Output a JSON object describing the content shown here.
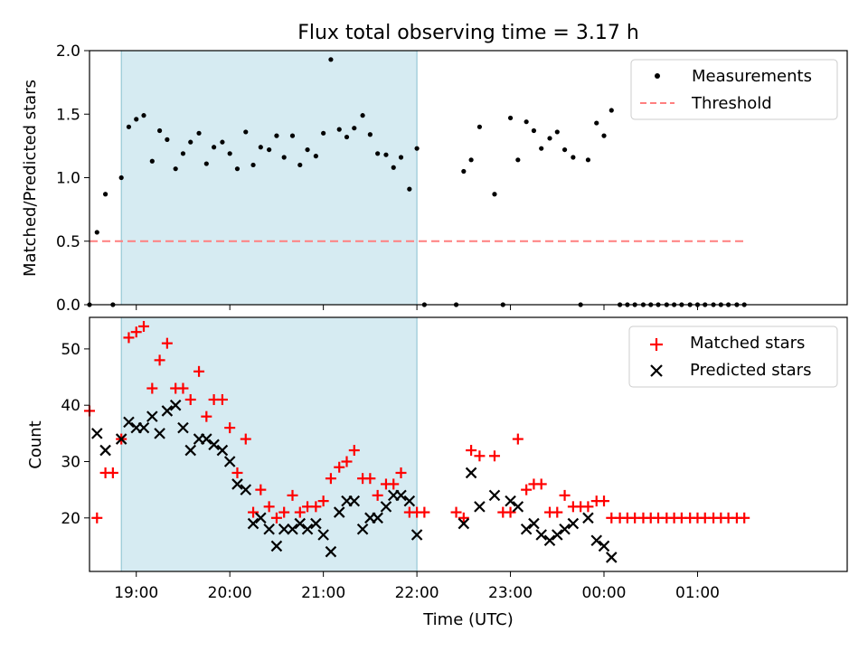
{
  "chart_data": [
    {
      "type": "scatter",
      "title": "Flux total observing time = 3.17 h",
      "xlabel": "",
      "ylabel": "Matched/Predicted stars",
      "xlim": [
        -0.5,
        7.6
      ],
      "ylim": [
        0,
        2.0
      ],
      "yticks": [
        0.0,
        0.5,
        1.0,
        1.5,
        2.0
      ],
      "ytick_labels": [
        "0.0",
        "0.5",
        "1.0",
        "1.5",
        "2.0"
      ],
      "xticks": [
        0.0,
        1.0,
        2.0,
        3.0,
        4.0,
        5.0,
        6.0
      ],
      "shaded_span": [
        -0.16,
        3.0
      ],
      "legend": {
        "placement": "top-right",
        "entries": [
          "Measurements",
          "Threshold"
        ]
      },
      "series": [
        {
          "name": "Measurements",
          "marker": "dot",
          "color": "#000000",
          "x": [
            -0.5,
            -0.42,
            -0.33,
            -0.25,
            -0.16,
            -0.08,
            0.0,
            0.08,
            0.17,
            0.25,
            0.33,
            0.42,
            0.5,
            0.58,
            0.67,
            0.75,
            0.83,
            0.92,
            1.0,
            1.08,
            1.17,
            1.25,
            1.33,
            1.42,
            1.5,
            1.58,
            1.67,
            1.75,
            1.83,
            1.92,
            2.0,
            2.08,
            2.17,
            2.25,
            2.33,
            2.42,
            2.5,
            2.58,
            2.67,
            2.75,
            2.83,
            2.92,
            3.0,
            3.08,
            3.42,
            3.5,
            3.58,
            3.67,
            3.83,
            3.92,
            4.0,
            4.08,
            4.17,
            4.25,
            4.33,
            4.42,
            4.5,
            4.58,
            4.67,
            4.75,
            4.83,
            4.92,
            5.0,
            5.08,
            5.17,
            5.25,
            5.33,
            5.42,
            5.5,
            5.58,
            5.67,
            5.75,
            5.83,
            5.92,
            6.0,
            6.08,
            6.17,
            6.25,
            6.33,
            6.42,
            6.5
          ],
          "values": [
            0.0,
            0.57,
            0.87,
            0.0,
            1.0,
            1.4,
            1.46,
            1.49,
            1.13,
            1.37,
            1.3,
            1.07,
            1.19,
            1.28,
            1.35,
            1.11,
            1.24,
            1.28,
            1.19,
            1.07,
            1.36,
            1.1,
            1.24,
            1.22,
            1.33,
            1.16,
            1.33,
            1.1,
            1.22,
            1.17,
            1.35,
            1.93,
            1.38,
            1.32,
            1.39,
            1.49,
            1.34,
            1.19,
            1.18,
            1.08,
            1.16,
            0.91,
            1.23,
            0.0,
            0.0,
            1.05,
            1.14,
            1.4,
            0.87,
            0.0,
            1.47,
            1.14,
            1.44,
            1.37,
            1.23,
            1.31,
            1.36,
            1.22,
            1.16,
            0.0,
            1.14,
            1.43,
            1.33,
            1.53,
            0.0,
            0.0,
            0.0,
            0.0,
            0.0,
            0.0,
            0.0,
            0.0,
            0.0,
            0.0,
            0.0,
            0.0,
            0.0,
            0.0,
            0.0,
            0.0,
            0.0
          ]
        },
        {
          "name": "Threshold",
          "style": "dashed",
          "color": "#ff7f7f",
          "x": [
            -0.5,
            6.5
          ],
          "values": [
            0.5,
            0.5
          ]
        }
      ]
    },
    {
      "type": "scatter",
      "title": "",
      "xlabel": "Time (UTC)",
      "ylabel": "Count",
      "xlim": [
        -0.5,
        7.6
      ],
      "ylim": [
        10.5,
        55.6
      ],
      "yticks": [
        20,
        30,
        40,
        50
      ],
      "ytick_labels": [
        "20",
        "30",
        "40",
        "50"
      ],
      "xticks": [
        0.0,
        1.0,
        2.0,
        3.0,
        4.0,
        5.0,
        6.0
      ],
      "xtick_labels": [
        "19:00",
        "20:00",
        "21:00",
        "22:00",
        "23:00",
        "00:00",
        "01:00"
      ],
      "shaded_span": [
        -0.16,
        3.0
      ],
      "legend": {
        "placement": "top-right",
        "entries": [
          "Matched stars",
          "Predicted stars"
        ]
      },
      "series": [
        {
          "name": "Matched stars",
          "marker": "plus",
          "color": "#ff0000",
          "x": [
            -0.5,
            -0.42,
            -0.33,
            -0.25,
            -0.16,
            -0.08,
            0.0,
            0.08,
            0.17,
            0.25,
            0.33,
            0.42,
            0.5,
            0.58,
            0.67,
            0.75,
            0.83,
            0.92,
            1.0,
            1.08,
            1.17,
            1.25,
            1.33,
            1.42,
            1.5,
            1.58,
            1.67,
            1.75,
            1.83,
            1.92,
            2.0,
            2.08,
            2.17,
            2.25,
            2.33,
            2.42,
            2.5,
            2.58,
            2.67,
            2.75,
            2.83,
            2.92,
            3.0,
            3.08,
            3.42,
            3.5,
            3.58,
            3.67,
            3.83,
            3.92,
            4.0,
            4.08,
            4.17,
            4.25,
            4.33,
            4.42,
            4.5,
            4.58,
            4.67,
            4.75,
            4.83,
            4.92,
            5.0,
            5.08,
            5.17,
            5.25,
            5.33,
            5.42,
            5.5,
            5.58,
            5.67,
            5.75,
            5.83,
            5.92,
            6.0,
            6.08,
            6.17,
            6.25,
            6.33,
            6.42,
            6.5
          ],
          "values": [
            39,
            20,
            28,
            28,
            34,
            52,
            53,
            54,
            43,
            48,
            51,
            43,
            43,
            41,
            46,
            38,
            41,
            41,
            36,
            28,
            34,
            21,
            25,
            22,
            20,
            21,
            24,
            21,
            22,
            22,
            23,
            27,
            29,
            30,
            32,
            27,
            27,
            24,
            26,
            26,
            28,
            21,
            21,
            21,
            21,
            20,
            32,
            31,
            31,
            21,
            21,
            34,
            25,
            26,
            26,
            21,
            21,
            24,
            22,
            22,
            22,
            23,
            23,
            20,
            20,
            20,
            20,
            20,
            20,
            20,
            20,
            20,
            20,
            20,
            20,
            20,
            20,
            20,
            20,
            20,
            20
          ]
        },
        {
          "name": "Predicted stars",
          "marker": "x",
          "color": "#000000",
          "x": [
            -0.42,
            -0.33,
            -0.16,
            -0.08,
            0.0,
            0.08,
            0.17,
            0.25,
            0.33,
            0.42,
            0.5,
            0.58,
            0.67,
            0.75,
            0.83,
            0.92,
            1.0,
            1.08,
            1.17,
            1.25,
            1.33,
            1.42,
            1.5,
            1.58,
            1.67,
            1.75,
            1.83,
            1.92,
            2.0,
            2.08,
            2.17,
            2.25,
            2.33,
            2.42,
            2.5,
            2.58,
            2.67,
            2.75,
            2.83,
            2.92,
            3.0,
            3.5,
            3.58,
            3.67,
            3.83,
            4.0,
            4.08,
            4.17,
            4.25,
            4.33,
            4.42,
            4.5,
            4.58,
            4.67,
            4.83,
            4.92,
            5.0,
            5.08
          ],
          "values": [
            35,
            32,
            34,
            37,
            36,
            36,
            38,
            35,
            39,
            40,
            36,
            32,
            34,
            34,
            33,
            32,
            30,
            26,
            25,
            19,
            20,
            18,
            15,
            18,
            18,
            19,
            18,
            19,
            17,
            14,
            21,
            23,
            23,
            18,
            20,
            20,
            22,
            24,
            24,
            23,
            17,
            19,
            28,
            22,
            24,
            23,
            22,
            18,
            19,
            17,
            16,
            17,
            18,
            19,
            20,
            16,
            15,
            13
          ]
        }
      ]
    }
  ]
}
